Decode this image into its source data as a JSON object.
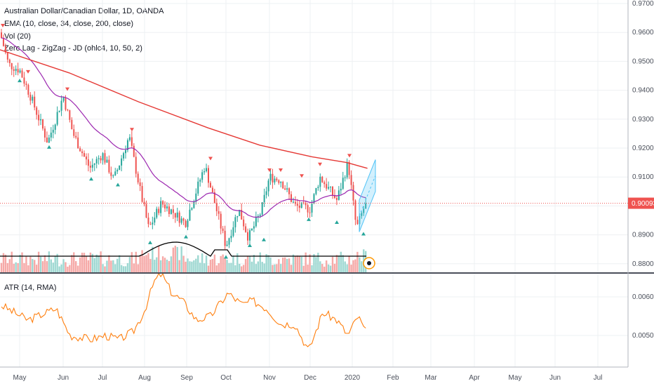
{
  "header": {
    "title": "Australian Dollar/Canadian Dollar, 1D, OANDA",
    "ema_label": "EMA (10, close, 34, close, 200, close)",
    "vol_label": "Vol (20)",
    "zigzag_label": "Zero Lag - ZigZag - JD (ohlc4, 10, 50, 2)",
    "atr_label": "ATR (14, RMA)"
  },
  "price_axis": {
    "ticks": [
      "0.97000",
      "0.96000",
      "0.95000",
      "0.94000",
      "0.93000",
      "0.92000",
      "0.91000",
      "0.90000",
      "0.89000",
      "0.88000"
    ],
    "last_price": "0.90093"
  },
  "atr_axis": {
    "ticks": [
      "0.00600",
      "0.00500"
    ]
  },
  "time_axis": {
    "labels": [
      "May",
      "Jun",
      "Jul",
      "Aug",
      "Sep",
      "Oct",
      "Nov",
      "Dec",
      "2020",
      "Feb",
      "Mar",
      "Apr",
      "May",
      "Jun",
      "Jul"
    ]
  },
  "colors": {
    "up": "#26a69a",
    "down": "#ef5350",
    "ema_fast": "#9c27b0",
    "ema_slow": "#e53935",
    "atr": "#ff7f0e",
    "projection": "#4fc3f7",
    "last_price": "#ef5350"
  },
  "chart_data": {
    "type": "candlestick",
    "symbol": "AUD/CAD",
    "interval": "1D",
    "ylim": [
      0.876,
      0.971
    ],
    "atr_ylim": [
      0.004,
      0.007
    ],
    "monthly_closes": [
      {
        "month": "Apr",
        "close": 0.952
      },
      {
        "month": "May",
        "close": 0.933
      },
      {
        "month": "Jun",
        "close": 0.918
      },
      {
        "month": "Jul",
        "close": 0.912
      },
      {
        "month": "Aug",
        "close": 0.893
      },
      {
        "month": "Sep",
        "close": 0.9
      },
      {
        "month": "Oct",
        "close": 0.898
      },
      {
        "month": "Nov",
        "close": 0.9
      },
      {
        "month": "Dec",
        "close": 0.909
      },
      {
        "month": "Jan",
        "close": 0.9009
      }
    ],
    "ema_slow_points": [
      [
        0,
        0.954
      ],
      [
        40,
        0.946
      ],
      [
        80,
        0.936
      ],
      [
        120,
        0.927
      ],
      [
        150,
        0.921
      ],
      [
        180,
        0.917
      ],
      [
        200,
        0.915
      ],
      [
        212,
        0.913
      ]
    ],
    "last_price": 0.90093,
    "atr_range": [
      0.0045,
      0.0065
    ]
  }
}
